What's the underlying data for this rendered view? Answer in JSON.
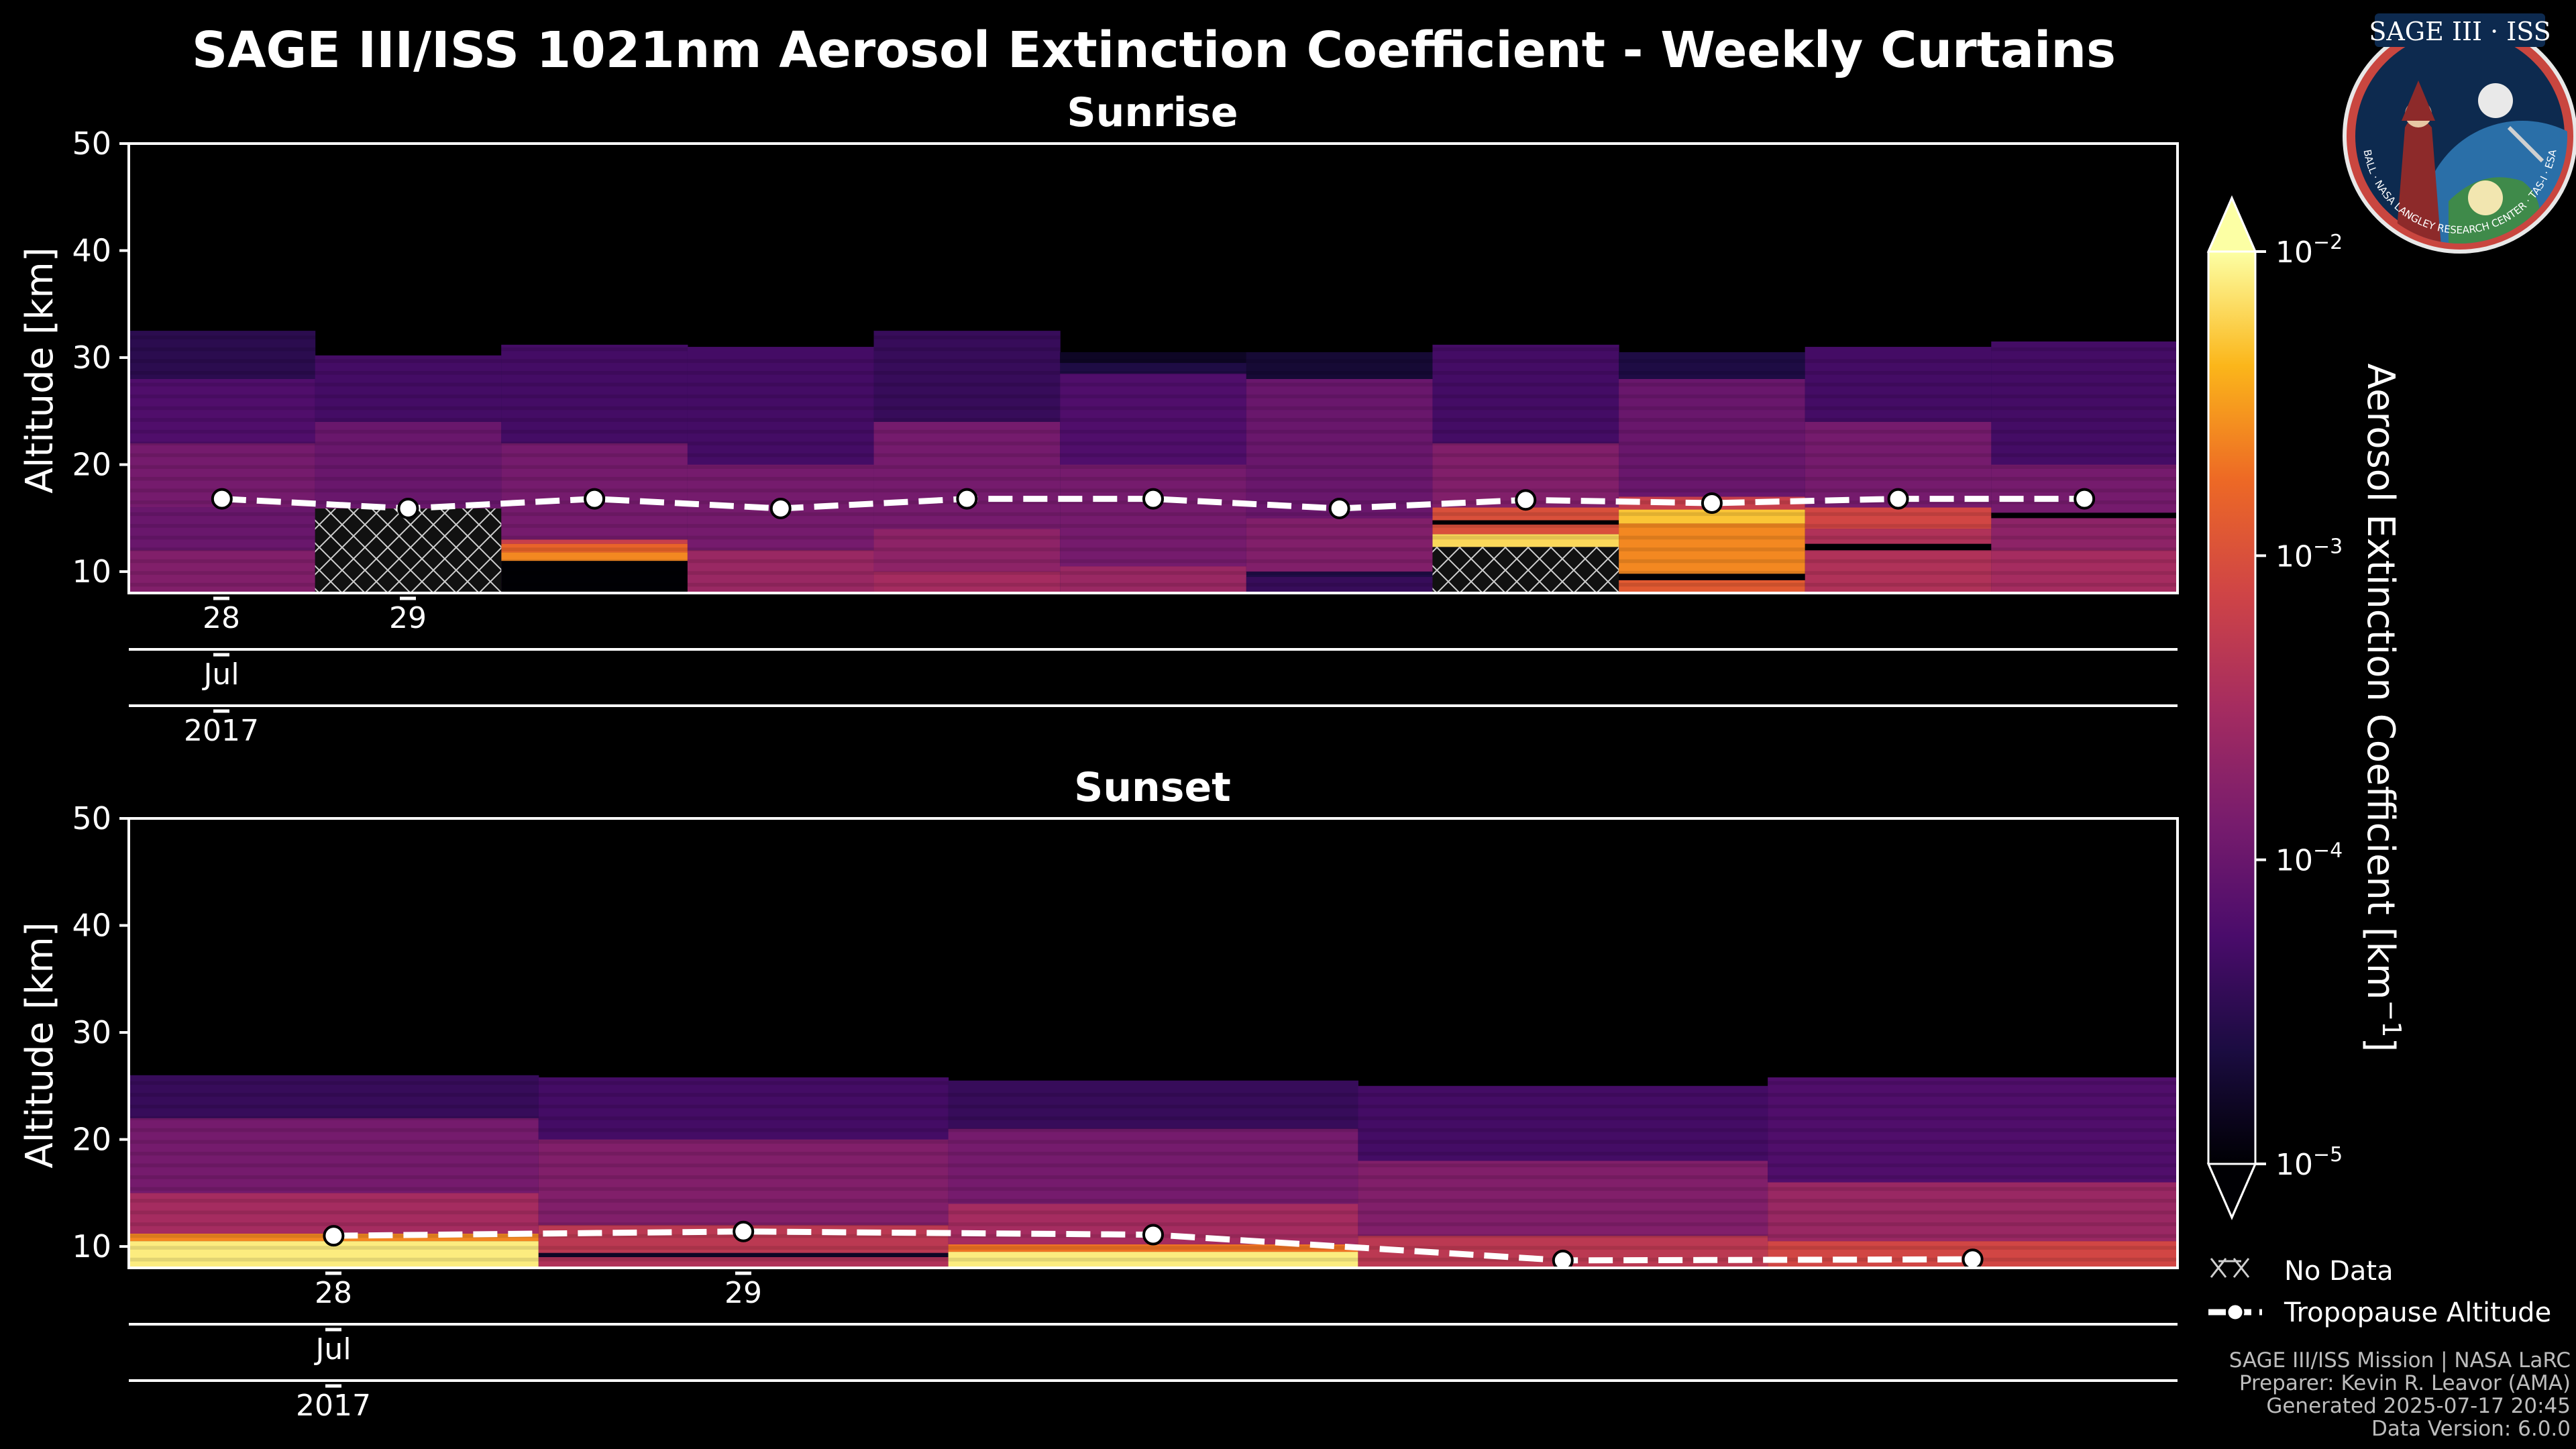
{
  "figure": {
    "title": "SAGE III/ISS 1021nm Aerosol Extinction Coefficient - Weekly Curtains",
    "logo": {
      "text": "SAGE III · ISS",
      "ring_text": "BALL · NASA LANGLEY RESEARCH CENTER · TAS-I · ESA",
      "icon": "sage-iii-iss-mission-patch"
    },
    "credits": [
      "SAGE III/ISS Mission | NASA LaRC",
      "Preparer: Kevin R. Leavor (AMA)",
      "Generated 2025-07-17 20:45",
      "Data Version: 6.0.0"
    ],
    "legend": {
      "no_data": "No Data",
      "tropopause": "Tropopause Altitude"
    },
    "colorbar": {
      "label": "Aerosol Extinction Coefficient [km",
      "label_sup": "−1",
      "label_close": "]",
      "ticks": [
        {
          "base": "10",
          "exp": "−2",
          "value": 0.01
        },
        {
          "base": "10",
          "exp": "−3",
          "value": 0.001
        },
        {
          "base": "10",
          "exp": "−4",
          "value": 0.0001
        },
        {
          "base": "10",
          "exp": "−5",
          "value": 1e-05
        }
      ],
      "colormap": "inferno",
      "scale": "log"
    }
  },
  "chart_data": [
    {
      "type": "heatmap",
      "title": "Sunrise",
      "ylabel": "Altitude [km]",
      "ylim": [
        8,
        50
      ],
      "yticks": [
        10,
        20,
        30,
        40,
        50
      ],
      "xtick_labels": [
        "28",
        "29"
      ],
      "xtick_month": "Jul",
      "xtick_year": "2017",
      "tropopause_km": [
        16.8,
        15.9,
        16.8,
        15.9,
        16.8,
        16.8,
        15.9,
        16.7,
        16.4,
        16.8,
        16.8
      ],
      "columns": [
        {
          "top_km": 32.5,
          "no_data": null,
          "layers": [
            {
              "from": 8,
              "to": 12,
              "logk": -3.8
            },
            {
              "from": 12,
              "to": 16,
              "logk": -4.0
            },
            {
              "from": 16,
              "to": 22,
              "logk": -3.9
            },
            {
              "from": 22,
              "to": 28,
              "logk": -4.2
            },
            {
              "from": 28,
              "to": 32.5,
              "logk": -4.5
            }
          ]
        },
        {
          "top_km": 30.2,
          "no_data": [
            8,
            15.9
          ],
          "layers": [
            {
              "from": 8,
              "to": 16,
              "logk": -3.9
            },
            {
              "from": 16,
              "to": 24,
              "logk": -4.0
            },
            {
              "from": 24,
              "to": 30.2,
              "logk": -4.3
            }
          ]
        },
        {
          "top_km": 31.2,
          "no_data": null,
          "layers": [
            {
              "from": 8,
              "to": 11,
              "logk": -5.5
            },
            {
              "from": 11,
              "to": 11.8,
              "logk": -2.6
            },
            {
              "from": 11.8,
              "to": 12.6,
              "logk": -2.8
            },
            {
              "from": 12.6,
              "to": 13.0,
              "logk": -3.2
            },
            {
              "from": 13,
              "to": 22,
              "logk": -3.9
            },
            {
              "from": 22,
              "to": 31.2,
              "logk": -4.3
            }
          ]
        },
        {
          "top_km": 31.0,
          "no_data": null,
          "layers": [
            {
              "from": 8,
              "to": 12,
              "logk": -3.6
            },
            {
              "from": 12,
              "to": 20,
              "logk": -3.9
            },
            {
              "from": 20,
              "to": 31,
              "logk": -4.3
            }
          ]
        },
        {
          "top_km": 32.5,
          "no_data": null,
          "layers": [
            {
              "from": 8,
              "to": 10,
              "logk": -3.5
            },
            {
              "from": 10,
              "to": 14,
              "logk": -3.7
            },
            {
              "from": 14,
              "to": 24,
              "logk": -3.9
            },
            {
              "from": 24,
              "to": 32.5,
              "logk": -4.4
            }
          ]
        },
        {
          "top_km": 30.5,
          "no_data": null,
          "layers": [
            {
              "from": 8,
              "to": 10.5,
              "logk": -3.6
            },
            {
              "from": 10.5,
              "to": 20,
              "logk": -3.9
            },
            {
              "from": 20,
              "to": 28.5,
              "logk": -4.2
            },
            {
              "from": 29.5,
              "to": 30.5,
              "logk": -4.8
            }
          ]
        },
        {
          "top_km": 30.5,
          "no_data": null,
          "layers": [
            {
              "from": 8,
              "to": 9.5,
              "logk": -4.4
            },
            {
              "from": 10,
              "to": 15,
              "logk": -3.8
            },
            {
              "from": 15,
              "to": 28,
              "logk": -4.0
            },
            {
              "from": 28,
              "to": 30.5,
              "logk": -4.7
            }
          ]
        },
        {
          "top_km": 31.2,
          "no_data": [
            8,
            12.3
          ],
          "layers": [
            {
              "from": 8,
              "to": 12.3,
              "logk": -3.5
            },
            {
              "from": 12.3,
              "to": 13.5,
              "logk": -2.2
            },
            {
              "from": 13.5,
              "to": 14.4,
              "logk": -3.0
            },
            {
              "from": 14.4,
              "to": 14.8,
              "logk": -5.0
            },
            {
              "from": 14.8,
              "to": 16,
              "logk": -3.0
            },
            {
              "from": 16,
              "to": 22,
              "logk": -3.8
            },
            {
              "from": 22,
              "to": 31.2,
              "logk": -4.3
            }
          ]
        },
        {
          "top_km": 30.5,
          "no_data": null,
          "layers": [
            {
              "from": 8,
              "to": 9.2,
              "logk": -2.9
            },
            {
              "from": 9.2,
              "to": 9.8,
              "logk": -5.0
            },
            {
              "from": 9.8,
              "to": 14.5,
              "logk": -2.6
            },
            {
              "from": 14.5,
              "to": 15.8,
              "logk": -2.3
            },
            {
              "from": 15.8,
              "to": 17,
              "logk": -3.2
            },
            {
              "from": 17,
              "to": 28,
              "logk": -4.0
            },
            {
              "from": 28,
              "to": 30.5,
              "logk": -4.6
            }
          ]
        },
        {
          "top_km": 31.0,
          "no_data": null,
          "layers": [
            {
              "from": 8,
              "to": 12,
              "logk": -3.4
            },
            {
              "from": 12,
              "to": 12.6,
              "logk": -5.0
            },
            {
              "from": 12.6,
              "to": 14,
              "logk": -3.4
            },
            {
              "from": 14,
              "to": 16,
              "logk": -3.1
            },
            {
              "from": 16,
              "to": 24,
              "logk": -3.9
            },
            {
              "from": 24,
              "to": 31,
              "logk": -4.3
            }
          ]
        },
        {
          "top_km": 31.5,
          "no_data": null,
          "layers": [
            {
              "from": 8,
              "to": 12,
              "logk": -3.5
            },
            {
              "from": 12,
              "to": 15,
              "logk": -3.7
            },
            {
              "from": 15,
              "to": 15.5,
              "logk": -5.0
            },
            {
              "from": 15.5,
              "to": 20,
              "logk": -3.9
            },
            {
              "from": 20,
              "to": 31.5,
              "logk": -4.3
            }
          ]
        }
      ]
    },
    {
      "type": "heatmap",
      "title": "Sunset",
      "ylabel": "Altitude [km]",
      "ylim": [
        8,
        50
      ],
      "yticks": [
        10,
        20,
        30,
        40,
        50
      ],
      "xtick_labels": [
        "28",
        "29"
      ],
      "xtick_month": "Jul",
      "xtick_year": "2017",
      "tropopause_km": [
        11.0,
        11.4,
        11.1,
        8.7,
        8.8
      ],
      "columns": [
        {
          "top_km": 26.0,
          "no_data": null,
          "layers": [
            {
              "from": 8,
              "to": 10.5,
              "logk": -2.1
            },
            {
              "from": 10.5,
              "to": 11.2,
              "logk": -2.6
            },
            {
              "from": 11.2,
              "to": 15,
              "logk": -3.5
            },
            {
              "from": 15,
              "to": 22,
              "logk": -3.9
            },
            {
              "from": 22,
              "to": 26,
              "logk": -4.4
            }
          ]
        },
        {
          "top_km": 25.8,
          "no_data": null,
          "layers": [
            {
              "from": 8,
              "to": 9.0,
              "logk": -3.4
            },
            {
              "from": 9.0,
              "to": 9.4,
              "logk": -4.8
            },
            {
              "from": 9.4,
              "to": 12,
              "logk": -3.3
            },
            {
              "from": 12,
              "to": 20,
              "logk": -3.8
            },
            {
              "from": 20,
              "to": 25.8,
              "logk": -4.3
            }
          ]
        },
        {
          "top_km": 25.5,
          "no_data": null,
          "layers": [
            {
              "from": 8,
              "to": 9.5,
              "logk": -2.1
            },
            {
              "from": 9.5,
              "to": 10.2,
              "logk": -2.7
            },
            {
              "from": 10.2,
              "to": 14,
              "logk": -3.5
            },
            {
              "from": 14,
              "to": 21,
              "logk": -3.9
            },
            {
              "from": 21,
              "to": 25.5,
              "logk": -4.4
            }
          ]
        },
        {
          "top_km": 25.0,
          "no_data": null,
          "layers": [
            {
              "from": 8,
              "to": 11,
              "logk": -3.3
            },
            {
              "from": 11,
              "to": 18,
              "logk": -3.8
            },
            {
              "from": 18,
              "to": 25,
              "logk": -4.3
            }
          ]
        },
        {
          "top_km": 25.8,
          "no_data": null,
          "layers": [
            {
              "from": 8,
              "to": 10.5,
              "logk": -3.1
            },
            {
              "from": 10.5,
              "to": 16,
              "logk": -3.6
            },
            {
              "from": 16,
              "to": 25.8,
              "logk": -4.2
            }
          ]
        }
      ]
    }
  ]
}
